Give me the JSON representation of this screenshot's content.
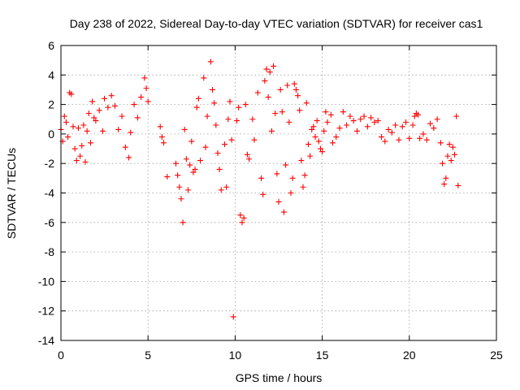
{
  "chart_data": {
    "type": "scatter",
    "title": "Day 238 of 2022, Sidereal Day-to-day VTEC variation (SDTVAR) for receiver cas1",
    "xlabel": "GPS time / hours",
    "ylabel": "SDTVAR / TECUs",
    "xlim": [
      0,
      25
    ],
    "ylim": [
      -14,
      6
    ],
    "xticks": [
      0,
      5,
      10,
      15,
      20,
      25
    ],
    "yticks": [
      -14,
      -12,
      -10,
      -8,
      -6,
      -4,
      -2,
      0,
      2,
      4,
      6
    ],
    "grid": true,
    "marker": "+",
    "series": [
      {
        "name": "SDTVAR",
        "color": "#ff0000",
        "points": [
          [
            0.0,
            0.3
          ],
          [
            0.1,
            -0.5
          ],
          [
            0.2,
            1.2
          ],
          [
            0.3,
            0.8
          ],
          [
            0.4,
            -0.2
          ],
          [
            0.5,
            2.8
          ],
          [
            0.6,
            2.7
          ],
          [
            0.7,
            0.5
          ],
          [
            0.8,
            -1.0
          ],
          [
            0.9,
            -1.8
          ],
          [
            1.0,
            0.4
          ],
          [
            1.1,
            -1.5
          ],
          [
            1.2,
            -0.8
          ],
          [
            1.3,
            0.6
          ],
          [
            1.4,
            -1.9
          ],
          [
            1.5,
            0.2
          ],
          [
            1.6,
            1.4
          ],
          [
            1.7,
            -0.6
          ],
          [
            1.8,
            2.2
          ],
          [
            1.9,
            1.1
          ],
          [
            2.0,
            0.9
          ],
          [
            2.2,
            1.6
          ],
          [
            2.4,
            0.2
          ],
          [
            2.5,
            2.4
          ],
          [
            2.7,
            1.8
          ],
          [
            2.9,
            2.6
          ],
          [
            3.1,
            1.9
          ],
          [
            3.3,
            0.3
          ],
          [
            3.5,
            1.2
          ],
          [
            3.7,
            -0.9
          ],
          [
            3.9,
            -1.6
          ],
          [
            4.0,
            0.1
          ],
          [
            4.2,
            2.0
          ],
          [
            4.4,
            1.1
          ],
          [
            4.6,
            2.5
          ],
          [
            4.8,
            3.8
          ],
          [
            4.9,
            3.1
          ],
          [
            5.0,
            2.2
          ],
          [
            5.7,
            0.5
          ],
          [
            5.8,
            -0.2
          ],
          [
            5.9,
            -0.6
          ],
          [
            6.1,
            -2.9
          ],
          [
            6.6,
            -2.0
          ],
          [
            6.7,
            -2.8
          ],
          [
            6.8,
            -3.6
          ],
          [
            6.9,
            -4.4
          ],
          [
            7.0,
            -6.0
          ],
          [
            7.1,
            0.3
          ],
          [
            7.2,
            -1.7
          ],
          [
            7.3,
            -3.8
          ],
          [
            7.4,
            -2.1
          ],
          [
            7.5,
            -0.5
          ],
          [
            7.6,
            -2.6
          ],
          [
            7.7,
            -2.4
          ],
          [
            7.8,
            1.8
          ],
          [
            7.9,
            2.4
          ],
          [
            8.0,
            -1.8
          ],
          [
            8.2,
            3.8
          ],
          [
            8.3,
            -0.9
          ],
          [
            8.4,
            1.2
          ],
          [
            8.6,
            4.9
          ],
          [
            8.7,
            3.0
          ],
          [
            8.8,
            2.1
          ],
          [
            8.9,
            0.6
          ],
          [
            9.0,
            -1.3
          ],
          [
            9.1,
            -2.4
          ],
          [
            9.2,
            -3.8
          ],
          [
            9.4,
            -0.7
          ],
          [
            9.5,
            -3.6
          ],
          [
            9.6,
            1.0
          ],
          [
            9.7,
            2.2
          ],
          [
            9.8,
            -0.4
          ],
          [
            9.9,
            -12.4
          ],
          [
            10.1,
            0.9
          ],
          [
            10.2,
            1.8
          ],
          [
            10.3,
            -5.5
          ],
          [
            10.4,
            -6.0
          ],
          [
            10.5,
            -5.7
          ],
          [
            10.6,
            2.0
          ],
          [
            10.7,
            -1.4
          ],
          [
            10.8,
            -1.7
          ],
          [
            11.0,
            1.0
          ],
          [
            11.1,
            -0.4
          ],
          [
            11.3,
            2.8
          ],
          [
            11.5,
            -3.0
          ],
          [
            11.6,
            -4.1
          ],
          [
            11.7,
            3.6
          ],
          [
            11.8,
            4.4
          ],
          [
            11.9,
            2.5
          ],
          [
            12.0,
            4.2
          ],
          [
            12.1,
            0.2
          ],
          [
            12.2,
            4.6
          ],
          [
            12.3,
            1.4
          ],
          [
            12.4,
            -2.7
          ],
          [
            12.5,
            -4.6
          ],
          [
            12.6,
            3.0
          ],
          [
            12.7,
            1.5
          ],
          [
            12.8,
            -5.3
          ],
          [
            12.9,
            -2.1
          ],
          [
            13.0,
            3.3
          ],
          [
            13.1,
            0.8
          ],
          [
            13.2,
            -4.0
          ],
          [
            13.3,
            -3.0
          ],
          [
            13.4,
            3.4
          ],
          [
            13.5,
            3.0
          ],
          [
            13.6,
            2.6
          ],
          [
            13.7,
            1.6
          ],
          [
            13.8,
            -1.8
          ],
          [
            13.9,
            -3.6
          ],
          [
            14.0,
            -2.8
          ],
          [
            14.1,
            2.1
          ],
          [
            14.2,
            -0.7
          ],
          [
            14.3,
            -1.5
          ],
          [
            14.4,
            0.3
          ],
          [
            14.5,
            0.5
          ],
          [
            14.6,
            -0.2
          ],
          [
            14.7,
            0.9
          ],
          [
            14.8,
            -0.5
          ],
          [
            14.9,
            -1.0
          ],
          [
            15.0,
            -1.2
          ],
          [
            15.1,
            0.2
          ],
          [
            15.2,
            1.5
          ],
          [
            15.3,
            0.8
          ],
          [
            15.5,
            1.3
          ],
          [
            15.6,
            -0.6
          ],
          [
            15.8,
            -0.2
          ],
          [
            16.0,
            0.4
          ],
          [
            16.2,
            1.5
          ],
          [
            16.4,
            0.6
          ],
          [
            16.6,
            1.2
          ],
          [
            16.8,
            0.9
          ],
          [
            17.0,
            0.2
          ],
          [
            17.2,
            1.0
          ],
          [
            17.4,
            1.2
          ],
          [
            17.6,
            0.5
          ],
          [
            17.8,
            1.1
          ],
          [
            18.0,
            0.8
          ],
          [
            18.2,
            0.9
          ],
          [
            18.4,
            -0.2
          ],
          [
            18.6,
            -0.5
          ],
          [
            18.8,
            0.3
          ],
          [
            19.0,
            0.1
          ],
          [
            19.2,
            0.6
          ],
          [
            19.4,
            -0.4
          ],
          [
            19.6,
            0.5
          ],
          [
            19.8,
            0.8
          ],
          [
            20.0,
            -0.3
          ],
          [
            20.2,
            0.6
          ],
          [
            20.3,
            1.2
          ],
          [
            20.4,
            1.4
          ],
          [
            20.5,
            1.3
          ],
          [
            20.6,
            -0.3
          ],
          [
            20.8,
            0.0
          ],
          [
            21.0,
            -0.4
          ],
          [
            21.2,
            0.7
          ],
          [
            21.4,
            0.4
          ],
          [
            21.6,
            1.0
          ],
          [
            21.8,
            -0.6
          ],
          [
            21.9,
            -2.0
          ],
          [
            22.0,
            -3.4
          ],
          [
            22.1,
            -3.0
          ],
          [
            22.2,
            -1.5
          ],
          [
            22.3,
            -0.7
          ],
          [
            22.4,
            -1.8
          ],
          [
            22.5,
            -0.9
          ],
          [
            22.6,
            -1.4
          ],
          [
            22.7,
            1.2
          ],
          [
            22.8,
            -3.5
          ]
        ]
      }
    ]
  }
}
